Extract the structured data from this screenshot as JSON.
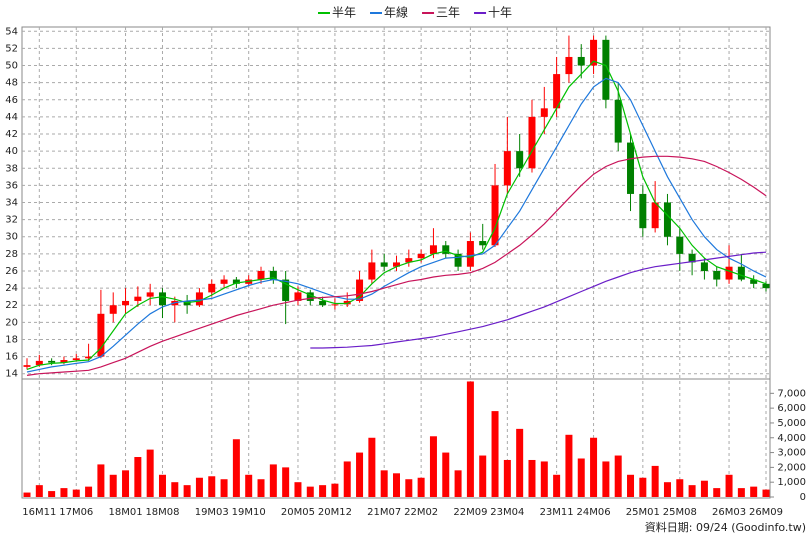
{
  "chart_data": {
    "type": "candlestick",
    "legend": "top",
    "up_color": "#ff0000",
    "down_color": "#008000",
    "grid": true,
    "footnote": "資料日期: 09/24 (Goodinfo.tw)",
    "categories": [
      null,
      "16M11",
      null,
      null,
      "17M06",
      null,
      null,
      null,
      "18M01",
      null,
      null,
      "18M08",
      null,
      null,
      null,
      "19M03",
      null,
      null,
      "19M10",
      null,
      null,
      null,
      "20M05",
      null,
      null,
      "20M12",
      null,
      null,
      null,
      "21M07",
      null,
      null,
      "22M02",
      null,
      null,
      null,
      "22M09",
      null,
      null,
      "23M04",
      null,
      null,
      null,
      "23M11",
      null,
      null,
      "24M06",
      null,
      null,
      null,
      "25M01",
      null,
      null,
      "25M08",
      null,
      null,
      null,
      "26M03",
      null,
      null,
      "26M09"
    ],
    "ylim": [
      13.5,
      54.5
    ],
    "yticks": [
      14,
      16,
      18,
      20,
      22,
      24,
      26,
      28,
      30,
      32,
      34,
      36,
      38,
      40,
      42,
      44,
      46,
      48,
      50,
      52,
      54
    ],
    "candles": [
      [
        14.8,
        15.8,
        14.5,
        15.0
      ],
      [
        15.0,
        16.2,
        14.8,
        15.5
      ],
      [
        15.5,
        15.8,
        15.0,
        15.3
      ],
      [
        15.3,
        16.0,
        15.1,
        15.6
      ],
      [
        15.6,
        16.3,
        15.4,
        15.8
      ],
      [
        15.8,
        17.5,
        15.5,
        16.0
      ],
      [
        16.0,
        23.8,
        15.8,
        21.0
      ],
      [
        21.0,
        23.5,
        20.0,
        22.0
      ],
      [
        22.0,
        24.0,
        21.0,
        22.5
      ],
      [
        22.5,
        24.2,
        21.8,
        23.0
      ],
      [
        23.0,
        24.5,
        22.0,
        23.5
      ],
      [
        23.5,
        24.0,
        20.5,
        22.0
      ],
      [
        22.0,
        23.0,
        20.0,
        22.5
      ],
      [
        22.5,
        23.2,
        21.0,
        22.0
      ],
      [
        22.0,
        24.0,
        21.8,
        23.5
      ],
      [
        23.5,
        25.0,
        23.0,
        24.5
      ],
      [
        24.5,
        25.5,
        24.0,
        25.0
      ],
      [
        25.0,
        25.3,
        24.0,
        24.5
      ],
      [
        24.5,
        25.5,
        24.2,
        25.0
      ],
      [
        25.0,
        26.5,
        24.5,
        26.0
      ],
      [
        26.0,
        26.5,
        24.5,
        25.0
      ],
      [
        25.0,
        26.0,
        19.8,
        22.5
      ],
      [
        22.5,
        24.2,
        22.0,
        23.5
      ],
      [
        23.5,
        23.8,
        22.0,
        22.5
      ],
      [
        22.5,
        23.0,
        21.8,
        22.0
      ],
      [
        22.0,
        22.8,
        21.5,
        22.1
      ],
      [
        22.1,
        23.5,
        21.8,
        22.5
      ],
      [
        22.5,
        26.0,
        22.3,
        25.0
      ],
      [
        25.0,
        28.5,
        24.5,
        27.0
      ],
      [
        27.0,
        28.0,
        26.0,
        26.5
      ],
      [
        26.5,
        27.8,
        26.0,
        27.0
      ],
      [
        27.0,
        28.5,
        26.5,
        27.5
      ],
      [
        27.5,
        28.5,
        27.0,
        28.0
      ],
      [
        28.0,
        31.0,
        27.5,
        29.0
      ],
      [
        29.0,
        29.5,
        27.5,
        28.0
      ],
      [
        28.0,
        28.5,
        26.0,
        26.5
      ],
      [
        26.5,
        30.5,
        26.0,
        29.5
      ],
      [
        29.5,
        31.5,
        28.5,
        29.0
      ],
      [
        29.0,
        38.5,
        28.8,
        36.0
      ],
      [
        36.0,
        44.0,
        35.0,
        40.0
      ],
      [
        40.0,
        42.0,
        37.0,
        38.0
      ],
      [
        38.0,
        46.0,
        37.5,
        44.0
      ],
      [
        44.0,
        47.5,
        42.0,
        45.0
      ],
      [
        45.0,
        51.0,
        44.0,
        49.0
      ],
      [
        49.0,
        53.5,
        48.0,
        51.0
      ],
      [
        51.0,
        52.5,
        48.5,
        50.0
      ],
      [
        50.0,
        53.5,
        49.0,
        53.0
      ],
      [
        53.0,
        53.5,
        45.0,
        46.0
      ],
      [
        46.0,
        48.0,
        40.0,
        41.0
      ],
      [
        41.0,
        42.0,
        33.0,
        35.0
      ],
      [
        35.0,
        36.0,
        30.0,
        31.0
      ],
      [
        31.0,
        36.5,
        30.5,
        34.0
      ],
      [
        34.0,
        35.0,
        29.0,
        30.0
      ],
      [
        30.0,
        31.0,
        26.0,
        28.0
      ],
      [
        28.0,
        28.5,
        25.5,
        27.0
      ],
      [
        27.0,
        27.5,
        25.0,
        26.0
      ],
      [
        26.0,
        26.5,
        24.2,
        25.0
      ],
      [
        25.0,
        29.0,
        24.5,
        26.5
      ],
      [
        26.5,
        28.0,
        24.8,
        25.0
      ],
      [
        25.0,
        25.5,
        24.0,
        24.5
      ],
      [
        24.5,
        24.8,
        23.6,
        24.0
      ]
    ],
    "series": [
      {
        "name": "半年",
        "color": "#00c000",
        "values": [
          14.5,
          15.0,
          15.2,
          15.3,
          15.5,
          15.6,
          17,
          19,
          21,
          22,
          22.8,
          23,
          22.7,
          22.3,
          22.5,
          23.2,
          24,
          24.6,
          24.8,
          25,
          25.2,
          24.5,
          23.8,
          23.2,
          22.6,
          22.2,
          22.2,
          23,
          24.5,
          25.8,
          26.5,
          27,
          27.3,
          28,
          28.3,
          27.8,
          27.6,
          28.2,
          31,
          35,
          37.5,
          40,
          42.5,
          45,
          47.5,
          49,
          50.5,
          50,
          47,
          42,
          37,
          34,
          32.5,
          31,
          29,
          27.5,
          26.5,
          26,
          25.5,
          25,
          24.5
        ]
      },
      {
        "name": "年線",
        "color": "#1e78dc",
        "values": [
          14.2,
          14.5,
          14.8,
          15,
          15.2,
          15.4,
          16,
          17.2,
          18.5,
          19.8,
          21,
          21.8,
          22.3,
          22.5,
          22.6,
          22.8,
          23.3,
          23.8,
          24.3,
          24.7,
          25,
          24.8,
          24.5,
          24,
          23.5,
          23,
          22.7,
          22.7,
          23.3,
          24.2,
          25,
          25.8,
          26.5,
          27,
          27.5,
          27.6,
          27.8,
          28,
          29,
          31,
          33,
          35.5,
          38,
          40.5,
          43,
          45.5,
          47.5,
          48.5,
          48,
          46,
          43,
          40,
          37,
          34.5,
          32,
          30,
          28.5,
          27.5,
          26.8,
          26,
          25.3
        ]
      },
      {
        "name": "三年",
        "color": "#c8145a",
        "values": [
          13.8,
          14,
          14.1,
          14.2,
          14.3,
          14.4,
          14.8,
          15.3,
          15.8,
          16.5,
          17.2,
          17.8,
          18.3,
          18.8,
          19.3,
          19.8,
          20.3,
          20.8,
          21.2,
          21.6,
          22,
          22.3,
          22.6,
          22.8,
          22.9,
          23,
          23.1,
          23.3,
          23.6,
          24,
          24.4,
          24.8,
          25,
          25.3,
          25.5,
          25.6,
          25.8,
          26.3,
          27,
          28,
          29,
          30.2,
          31.5,
          33,
          34.5,
          36,
          37.3,
          38.2,
          38.8,
          39.1,
          39.3,
          39.4,
          39.4,
          39.3,
          39.1,
          38.8,
          38.2,
          37.5,
          36.7,
          35.8,
          34.8
        ]
      },
      {
        "name": "十年",
        "color": "#6a1ec8",
        "values": [
          null,
          null,
          null,
          null,
          null,
          null,
          null,
          null,
          null,
          null,
          null,
          null,
          null,
          null,
          null,
          null,
          null,
          null,
          null,
          null,
          null,
          null,
          null,
          17,
          17,
          17.05,
          17.1,
          17.2,
          17.3,
          17.5,
          17.7,
          17.9,
          18.1,
          18.3,
          18.6,
          18.9,
          19.2,
          19.5,
          19.9,
          20.3,
          20.8,
          21.3,
          21.8,
          22.4,
          23,
          23.6,
          24.2,
          24.8,
          25.3,
          25.8,
          26.2,
          26.5,
          26.7,
          26.9,
          27.1,
          27.3,
          27.5,
          27.7,
          27.9,
          28.1,
          28.2
        ]
      }
    ],
    "volume": {
      "color": "#ff0000",
      "ylim": [
        0,
        7900
      ],
      "yticks": [
        0,
        {
          "value": 1000,
          "label": "1,000"
        },
        {
          "value": 2000,
          "label": "2,000"
        },
        {
          "value": 3000,
          "label": "3,000"
        },
        {
          "value": 4000,
          "label": "4,000"
        },
        {
          "value": 5000,
          "label": "5,000"
        },
        {
          "value": 6000,
          "label": "6,000"
        },
        {
          "value": 7000,
          "label": "7,000"
        }
      ],
      "values": [
        300,
        800,
        400,
        600,
        500,
        700,
        2200,
        1500,
        1800,
        2700,
        3200,
        1500,
        1000,
        800,
        1300,
        1400,
        1200,
        3900,
        1500,
        1200,
        2200,
        2000,
        1000,
        700,
        800,
        900,
        2400,
        3000,
        4000,
        1800,
        1600,
        1200,
        1300,
        4100,
        3000,
        1800,
        7800,
        2800,
        5800,
        2500,
        4600,
        2500,
        2400,
        1500,
        4200,
        2600,
        4000,
        2400,
        2800,
        1500,
        1300,
        2100,
        1000,
        1200,
        800,
        1100,
        600,
        1500,
        600,
        700,
        500
      ]
    }
  }
}
